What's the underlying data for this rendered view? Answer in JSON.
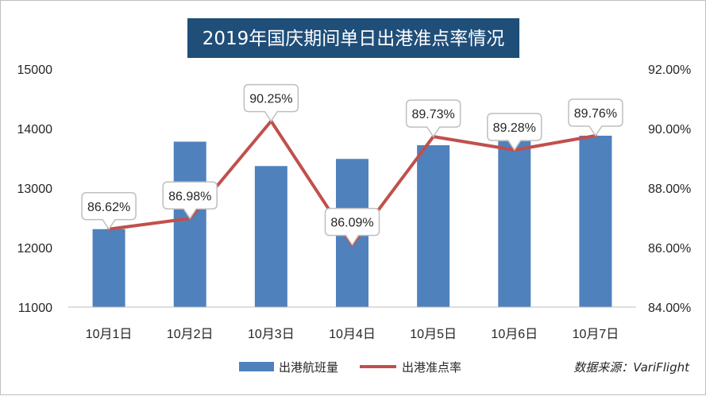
{
  "chart_data": {
    "type": "bar+line",
    "title": "2019年国庆期间单日出港准点率情况",
    "categories": [
      "10月1日",
      "10月2日",
      "10月3日",
      "10月4日",
      "10月5日",
      "10月6日",
      "10月7日"
    ],
    "series": [
      {
        "name": "出港航班量",
        "type": "bar",
        "axis": "left",
        "color": "#4f81bd",
        "values": [
          12310,
          13780,
          13370,
          13490,
          13720,
          13790,
          13880
        ]
      },
      {
        "name": "出港准点率",
        "type": "line",
        "axis": "right",
        "color": "#c0504d",
        "values": [
          86.62,
          86.98,
          90.25,
          86.09,
          89.73,
          89.28,
          89.76
        ],
        "labels": [
          "86.62%",
          "86.98%",
          "90.25%",
          "86.09%",
          "89.73%",
          "89.28%",
          "89.76%"
        ]
      }
    ],
    "y_left": {
      "min": 11000,
      "max": 15000,
      "ticks": [
        "11000",
        "12000",
        "13000",
        "14000",
        "15000"
      ]
    },
    "y_right": {
      "min": 84,
      "max": 92,
      "ticks": [
        "84.00%",
        "86.00%",
        "88.00%",
        "90.00%",
        "92.00%"
      ]
    },
    "grid": false,
    "legend": "bottom",
    "source": "数据来源：VariFlight",
    "title_background": "#1f4e79"
  }
}
